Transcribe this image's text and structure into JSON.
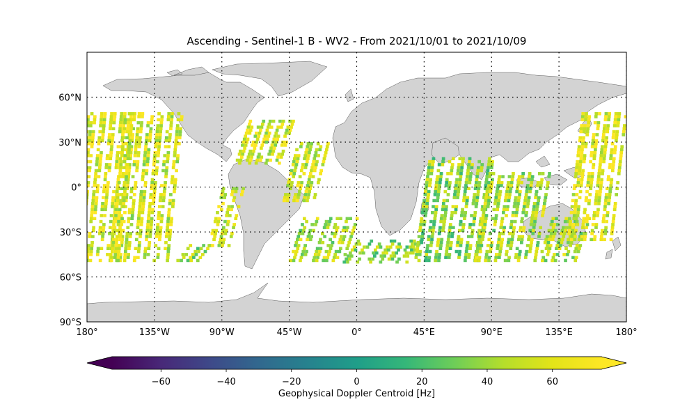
{
  "title": "Ascending - Sentinel-1 B - WV2 - From 2021/10/01 to 2021/10/09",
  "map": {
    "lat_ticks": [
      "60°N",
      "30°N",
      "0°",
      "30°S",
      "60°S",
      "90°S"
    ],
    "lon_ticks": [
      "180°",
      "135°W",
      "90°W",
      "45°W",
      "0°",
      "45°E",
      "90°E",
      "135°E",
      "180°"
    ],
    "grid_lons": [
      -135,
      -90,
      -45,
      0,
      45,
      90,
      135,
      180
    ],
    "grid_lats": [
      60,
      30,
      0,
      -30,
      -60
    ],
    "land_color": "#d3d3d3",
    "observation_lat_range": [
      -50,
      50
    ]
  },
  "colorbar": {
    "label": "Geophysical Doppler Centroid [Hz]",
    "ticks": [
      "−60",
      "−40",
      "−20",
      "0",
      "20",
      "40",
      "60"
    ],
    "tick_values": [
      -60,
      -40,
      -20,
      0,
      20,
      40,
      60
    ],
    "range": [
      -75,
      75
    ],
    "colormap": "viridis",
    "extend": "both"
  },
  "observation_swaths": [
    {
      "lon_start": -180,
      "lon_end": -147,
      "lat_top": 50,
      "lat_bottom": -50,
      "mean": 60
    },
    {
      "lon_start": -155,
      "lon_end": -117,
      "lat_top": 50,
      "lat_bottom": -50,
      "mean": 55
    },
    {
      "lon_start": -112,
      "lon_end": -97,
      "lat_top": -38,
      "lat_bottom": -50,
      "mean": 40
    },
    {
      "lon_start": -90,
      "lon_end": -76,
      "lat_top": 0,
      "lat_bottom": -40,
      "mean": 55
    },
    {
      "lon_start": -72,
      "lon_end": -43,
      "lat_top": 45,
      "lat_bottom": 15,
      "mean": 55
    },
    {
      "lon_start": -40,
      "lon_end": -20,
      "lat_top": 30,
      "lat_bottom": -10,
      "mean": 55
    },
    {
      "lon_start": -36,
      "lon_end": 0,
      "lat_top": -20,
      "lat_bottom": -50,
      "mean": 45
    },
    {
      "lon_start": 0,
      "lon_end": 45,
      "lat_top": -35,
      "lat_bottom": -50,
      "mean": 40
    },
    {
      "lon_start": 48,
      "lon_end": 90,
      "lat_top": 20,
      "lat_bottom": -50,
      "mean": 38
    },
    {
      "lon_start": 88,
      "lon_end": 128,
      "lat_top": 10,
      "lat_bottom": -50,
      "mean": 45
    },
    {
      "lon_start": 130,
      "lon_end": 155,
      "lat_top": -20,
      "lat_bottom": -50,
      "mean": 45
    },
    {
      "lon_start": 150,
      "lon_end": 180,
      "lat_top": 50,
      "lat_bottom": -35,
      "mean": 60
    }
  ]
}
